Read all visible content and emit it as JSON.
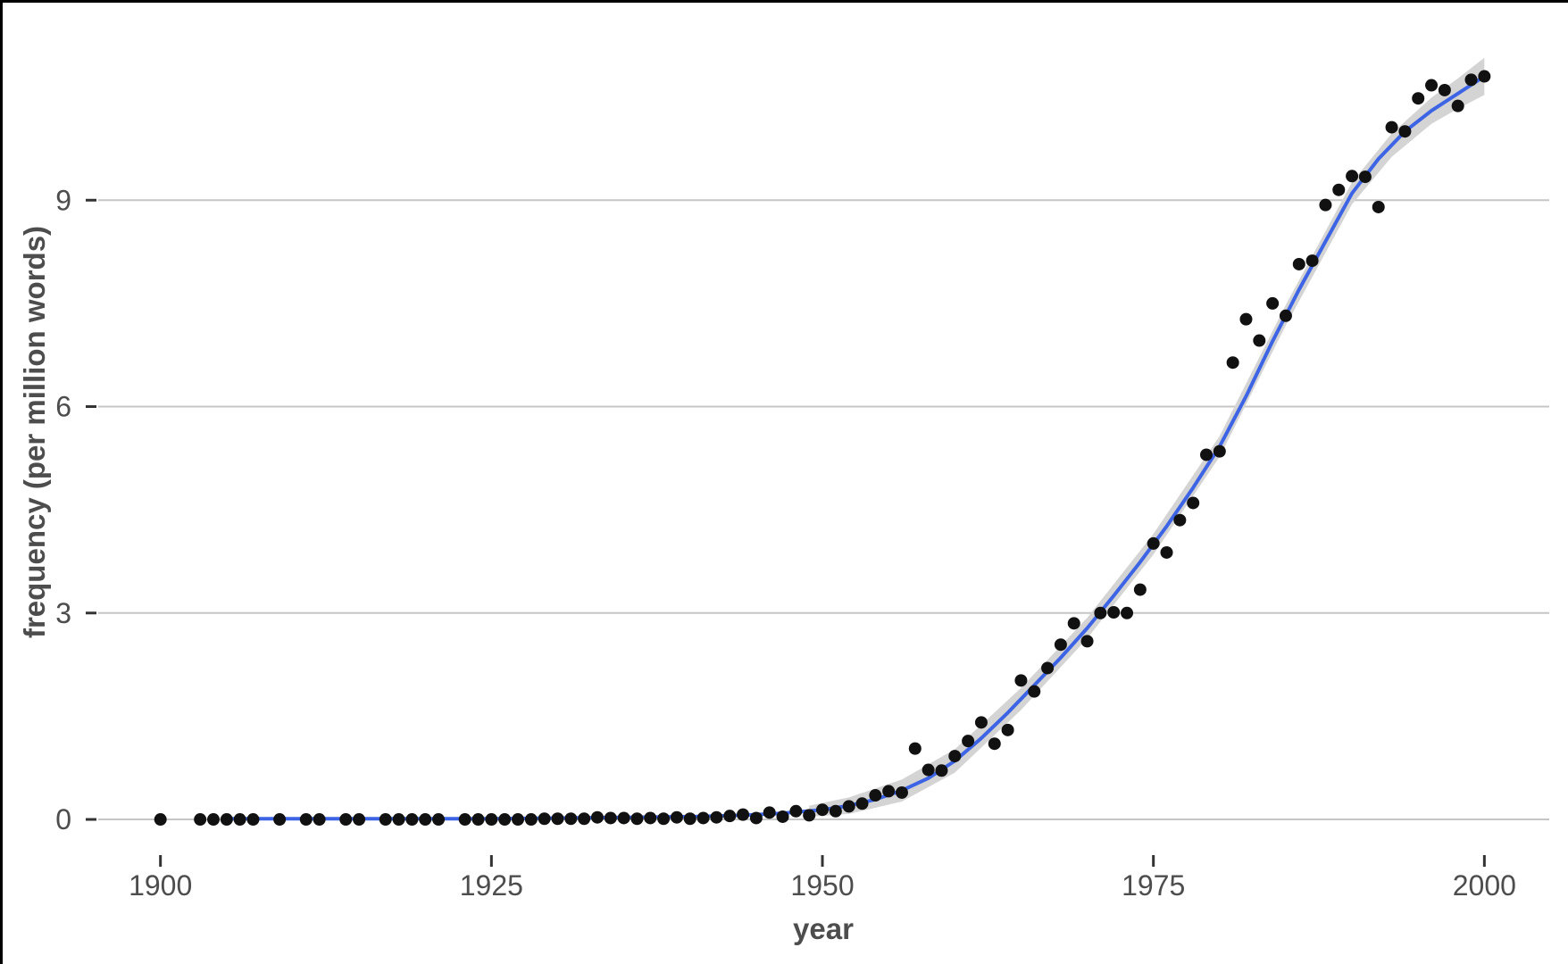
{
  "chart_data": {
    "type": "scatter",
    "title": "",
    "xlabel": "year",
    "ylabel": "frequency (per million words)",
    "x_ticks": [
      1900,
      1925,
      1950,
      1975,
      2000
    ],
    "x_tick_labels": [
      "1900",
      "1925",
      "1950",
      "1975",
      "2000"
    ],
    "y_ticks": [
      0,
      3,
      6,
      9
    ],
    "y_tick_labels": [
      "0",
      "3",
      "6",
      "9"
    ],
    "xlim": [
      1895.3,
      2004.9
    ],
    "ylim": [
      -0.35,
      11.65
    ],
    "grid": "horizontal-major-only",
    "legend": "none",
    "points": [
      [
        1900,
        0.0
      ],
      [
        1903,
        0.0
      ],
      [
        1904,
        0.0
      ],
      [
        1905,
        0.0
      ],
      [
        1906,
        0.0
      ],
      [
        1907,
        0.0
      ],
      [
        1909,
        0.0
      ],
      [
        1911,
        0.0
      ],
      [
        1912,
        0.0
      ],
      [
        1914,
        0.0
      ],
      [
        1915,
        0.0
      ],
      [
        1917,
        0.0
      ],
      [
        1918,
        0.0
      ],
      [
        1919,
        0.0
      ],
      [
        1920,
        0.0
      ],
      [
        1921,
        0.0
      ],
      [
        1923,
        0.0
      ],
      [
        1924,
        0.0
      ],
      [
        1925,
        0.0
      ],
      [
        1926,
        0.0
      ],
      [
        1927,
        0.0
      ],
      [
        1928,
        0.0
      ],
      [
        1929,
        0.01
      ],
      [
        1930,
        0.01
      ],
      [
        1931,
        0.01
      ],
      [
        1932,
        0.01
      ],
      [
        1933,
        0.03
      ],
      [
        1934,
        0.02
      ],
      [
        1935,
        0.02
      ],
      [
        1936,
        0.01
      ],
      [
        1937,
        0.02
      ],
      [
        1938,
        0.01
      ],
      [
        1939,
        0.03
      ],
      [
        1940,
        0.01
      ],
      [
        1941,
        0.02
      ],
      [
        1942,
        0.03
      ],
      [
        1943,
        0.05
      ],
      [
        1944,
        0.07
      ],
      [
        1945,
        0.02
      ],
      [
        1946,
        0.1
      ],
      [
        1947,
        0.04
      ],
      [
        1948,
        0.12
      ],
      [
        1949,
        0.06
      ],
      [
        1950,
        0.14
      ],
      [
        1951,
        0.12
      ],
      [
        1952,
        0.19
      ],
      [
        1953,
        0.23
      ],
      [
        1954,
        0.35
      ],
      [
        1955,
        0.41
      ],
      [
        1956,
        0.39
      ],
      [
        1957,
        1.03
      ],
      [
        1958,
        0.72
      ],
      [
        1959,
        0.71
      ],
      [
        1960,
        0.92
      ],
      [
        1961,
        1.14
      ],
      [
        1962,
        1.41
      ],
      [
        1963,
        1.1
      ],
      [
        1964,
        1.3
      ],
      [
        1965,
        2.02
      ],
      [
        1966,
        1.86
      ],
      [
        1967,
        2.2
      ],
      [
        1968,
        2.54
      ],
      [
        1969,
        2.85
      ],
      [
        1970,
        2.59
      ],
      [
        1971,
        3.0
      ],
      [
        1972,
        3.01
      ],
      [
        1973,
        3.0
      ],
      [
        1974,
        3.34
      ],
      [
        1975,
        4.01
      ],
      [
        1976,
        3.88
      ],
      [
        1977,
        4.35
      ],
      [
        1978,
        4.6
      ],
      [
        1979,
        5.3
      ],
      [
        1980,
        5.35
      ],
      [
        1981,
        6.64
      ],
      [
        1982,
        7.27
      ],
      [
        1983,
        6.96
      ],
      [
        1984,
        7.5
      ],
      [
        1985,
        7.32
      ],
      [
        1986,
        8.07
      ],
      [
        1987,
        8.12
      ],
      [
        1988,
        8.93
      ],
      [
        1989,
        9.15
      ],
      [
        1990,
        9.35
      ],
      [
        1991,
        9.34
      ],
      [
        1992,
        8.9
      ],
      [
        1993,
        10.06
      ],
      [
        1994,
        10.0
      ],
      [
        1995,
        10.48
      ],
      [
        1996,
        10.67
      ],
      [
        1997,
        10.6
      ],
      [
        1998,
        10.37
      ],
      [
        1999,
        10.75
      ],
      [
        2000,
        10.8
      ]
    ],
    "smooth_line": [
      [
        1905,
        0.01
      ],
      [
        1910,
        0.01
      ],
      [
        1915,
        0.01
      ],
      [
        1920,
        0.01
      ],
      [
        1925,
        0.01
      ],
      [
        1930,
        0.02
      ],
      [
        1935,
        0.03
      ],
      [
        1940,
        0.04
      ],
      [
        1944,
        0.06
      ],
      [
        1947,
        0.09
      ],
      [
        1950,
        0.14
      ],
      [
        1952,
        0.2
      ],
      [
        1954,
        0.29
      ],
      [
        1956,
        0.42
      ],
      [
        1958,
        0.6
      ],
      [
        1960,
        0.85
      ],
      [
        1962,
        1.18
      ],
      [
        1964,
        1.55
      ],
      [
        1966,
        1.95
      ],
      [
        1968,
        2.35
      ],
      [
        1970,
        2.78
      ],
      [
        1972,
        3.25
      ],
      [
        1974,
        3.74
      ],
      [
        1976,
        4.26
      ],
      [
        1978,
        4.82
      ],
      [
        1980,
        5.42
      ],
      [
        1982,
        6.15
      ],
      [
        1984,
        6.95
      ],
      [
        1986,
        7.7
      ],
      [
        1988,
        8.4
      ],
      [
        1990,
        9.1
      ],
      [
        1992,
        9.6
      ],
      [
        1994,
        10.0
      ],
      [
        1996,
        10.3
      ],
      [
        1998,
        10.55
      ],
      [
        2000,
        10.8
      ]
    ],
    "ci_ribbon": [
      [
        1949,
        0.04,
        0.2
      ],
      [
        1952,
        0.08,
        0.32
      ],
      [
        1956,
        0.26,
        0.58
      ],
      [
        1960,
        0.68,
        1.02
      ],
      [
        1965,
        1.59,
        1.91
      ],
      [
        1970,
        2.63,
        2.93
      ],
      [
        1975,
        3.85,
        4.15
      ],
      [
        1980,
        5.27,
        5.57
      ],
      [
        1985,
        7.18,
        7.48
      ],
      [
        1990,
        8.94,
        9.26
      ],
      [
        1993,
        9.63,
        9.97
      ],
      [
        1996,
        10.11,
        10.49
      ],
      [
        1998,
        10.33,
        10.77
      ],
      [
        2000,
        10.53,
        11.07
      ]
    ],
    "colors": {
      "point": "#111111",
      "smooth_line": "#3C64E4",
      "ribbon": "#d4d4d4",
      "gridline": "#c6c6c6",
      "tick": "#333333",
      "text": "#4d4d4d",
      "border": "#000000",
      "background": "#ffffff"
    }
  }
}
